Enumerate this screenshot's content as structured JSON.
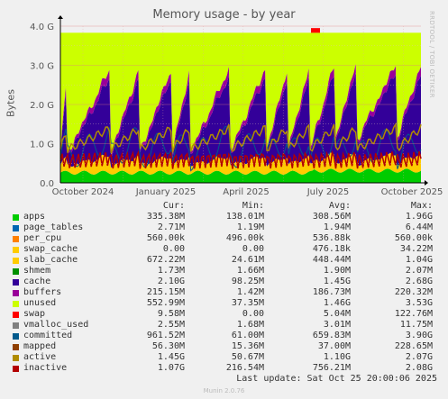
{
  "chart_data": {
    "type": "area",
    "title": "Memory usage - by year",
    "ylabel": "Bytes",
    "yticks": [
      "0.0",
      "1.0 G",
      "2.0 G",
      "3.0 G",
      "4.0 G"
    ],
    "ylim": [
      0,
      4.0
    ],
    "xticks": [
      "October 2024",
      "January 2025",
      "April 2025",
      "July 2025",
      "October 2025"
    ],
    "grid": true,
    "legend_header": [
      "Cur:",
      "Min:",
      "Avg:",
      "Max:"
    ],
    "series": [
      {
        "name": "apps",
        "color": "#00cc00",
        "cur": "335.38M",
        "min": "138.01M",
        "avg": "308.56M",
        "max": "1.96G"
      },
      {
        "name": "page_tables",
        "color": "#0066b3",
        "cur": "2.71M",
        "min": "1.19M",
        "avg": "1.94M",
        "max": "6.44M"
      },
      {
        "name": "per_cpu",
        "color": "#ff8000",
        "cur": "560.00k",
        "min": "496.00k",
        "avg": "536.88k",
        "max": "560.00k"
      },
      {
        "name": "swap_cache",
        "color": "#ffcc00",
        "cur": "0.00",
        "min": "0.00",
        "avg": "476.18k",
        "max": "34.22M"
      },
      {
        "name": "slab_cache",
        "color": "#ffcc00",
        "cur": "672.22M",
        "min": "24.61M",
        "avg": "448.44M",
        "max": "1.04G"
      },
      {
        "name": "shmem",
        "color": "#008f00",
        "cur": "1.73M",
        "min": "1.66M",
        "avg": "1.90M",
        "max": "2.07M"
      },
      {
        "name": "cache",
        "color": "#330099",
        "cur": "2.10G",
        "min": "98.25M",
        "avg": "1.45G",
        "max": "2.68G"
      },
      {
        "name": "buffers",
        "color": "#990099",
        "cur": "215.15M",
        "min": "1.42M",
        "avg": "186.73M",
        "max": "220.32M"
      },
      {
        "name": "unused",
        "color": "#ccff00",
        "cur": "552.99M",
        "min": "37.35M",
        "avg": "1.46G",
        "max": "3.53G"
      },
      {
        "name": "swap",
        "color": "#ff0000",
        "cur": "9.58M",
        "min": "0.00",
        "avg": "5.04M",
        "max": "122.76M"
      },
      {
        "name": "vmalloc_used",
        "color": "#808080",
        "cur": "2.55M",
        "min": "1.68M",
        "avg": "3.01M",
        "max": "11.75M"
      },
      {
        "name": "committed",
        "color": "#005a8c",
        "cur": "961.52M",
        "min": "61.00M",
        "avg": "659.83M",
        "max": "3.90G"
      },
      {
        "name": "mapped",
        "color": "#8f3f00",
        "cur": "56.30M",
        "min": "15.36M",
        "avg": "37.00M",
        "max": "228.65M"
      },
      {
        "name": "active",
        "color": "#b08c00",
        "cur": "1.45G",
        "min": "50.67M",
        "avg": "1.10G",
        "max": "2.07G"
      },
      {
        "name": "inactive",
        "color": "#b30000",
        "cur": "1.07G",
        "min": "216.54M",
        "avg": "756.21M",
        "max": "2.08G"
      }
    ],
    "last_update": "Last update: Sat Oct 25 20:00:06 2025"
  },
  "side_text": "RRDTOOL / TOBI OETIKER",
  "footer": "Munin 2.0.76"
}
